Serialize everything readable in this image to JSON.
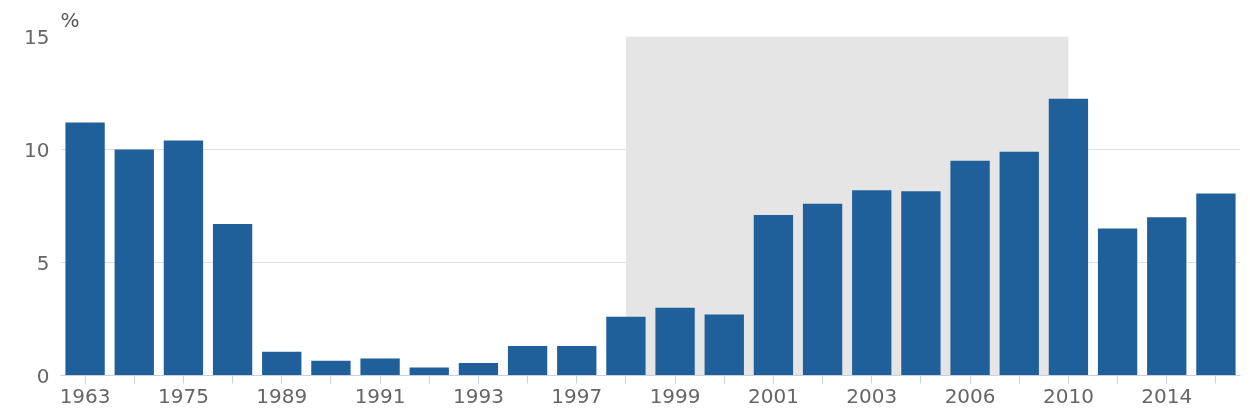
{
  "chart_data": {
    "type": "bar",
    "ylabel": "%",
    "categories": [
      "1963",
      null,
      "1975",
      null,
      "1989",
      null,
      "1991",
      null,
      "1993",
      null,
      "1997",
      null,
      "1999",
      null,
      "2001",
      null,
      "2003",
      null,
      "2006",
      null,
      "2010",
      null,
      "2014",
      null
    ],
    "series": [
      {
        "color": "#20609a",
        "values": [
          11.2,
          10.0,
          10.4,
          6.7,
          1.05,
          0.65,
          0.75,
          0.35,
          0.55,
          1.3,
          1.3,
          2.6,
          3.0,
          2.7,
          7.1,
          7.6,
          8.2,
          8.15,
          9.5,
          9.9,
          12.25,
          6.5,
          7.0,
          8.05
        ]
      }
    ],
    "ylim": [
      0,
      15
    ],
    "yticks": [
      0,
      5,
      10,
      15
    ],
    "grid": "y"
  }
}
